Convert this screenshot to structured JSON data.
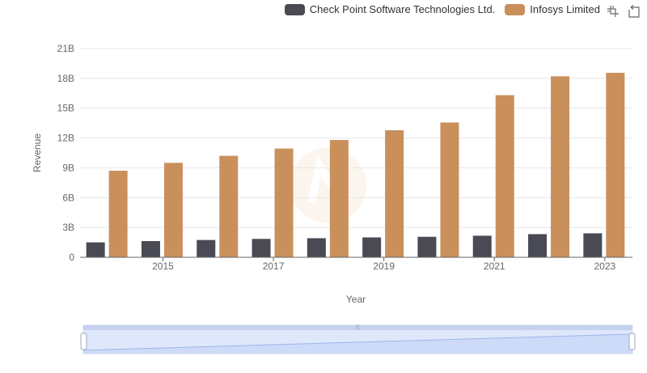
{
  "chart_data": {
    "type": "bar",
    "categories": [
      "2014",
      "2015",
      "2016",
      "2017",
      "2018",
      "2019",
      "2020",
      "2021",
      "2022",
      "2023"
    ],
    "series": [
      {
        "name": "Check Point Software Technologies Ltd.",
        "color": "#4a4a55",
        "values": [
          1.5,
          1.63,
          1.74,
          1.85,
          1.92,
          2.0,
          2.06,
          2.17,
          2.33,
          2.41
        ]
      },
      {
        "name": "Infosys Limited",
        "color": "#c9905c",
        "values": [
          8.71,
          9.5,
          10.21,
          10.94,
          11.8,
          12.78,
          13.56,
          16.31,
          18.21,
          18.56
        ]
      }
    ],
    "x_tick_labels": [
      "2015",
      "2017",
      "2019",
      "2021",
      "2023"
    ],
    "y_tick_labels": [
      "0",
      "3B",
      "6B",
      "9B",
      "12B",
      "15B",
      "18B",
      "21B"
    ],
    "xlabel": "Year",
    "ylabel": "Revenue",
    "ylim": [
      0,
      21
    ],
    "unit": "billions",
    "grid": true,
    "legend_position": "top-right"
  },
  "toolbox": {
    "icons": [
      "zoom-select-icon",
      "zoom-reset-icon"
    ]
  },
  "data_zoom": {
    "range": [
      0,
      100
    ]
  }
}
